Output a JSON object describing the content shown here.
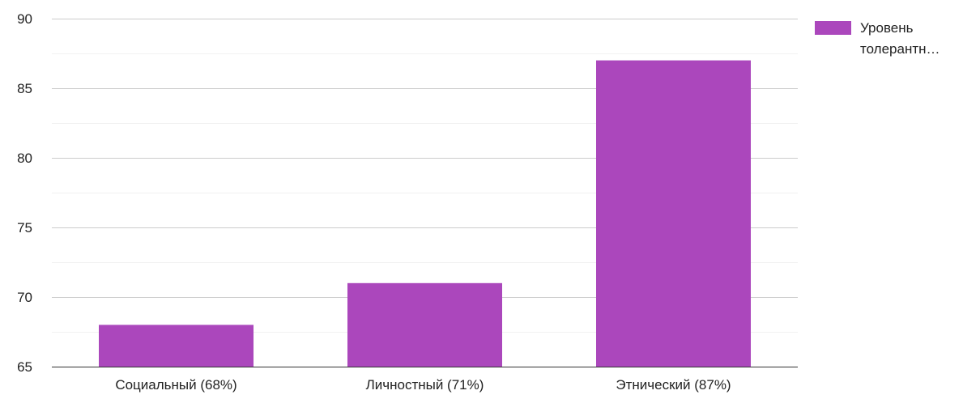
{
  "chart_data": {
    "type": "bar",
    "categories": [
      "Социальный (68%)",
      "Личностный (71%)",
      "Этнический (87%)"
    ],
    "series": [
      {
        "name": "Уровень толерантн…",
        "values": [
          68,
          71,
          87
        ],
        "color": "#ab47bc"
      }
    ],
    "ylim": [
      65,
      90
    ],
    "yticks": [
      65,
      70,
      75,
      80,
      85,
      90
    ],
    "grid": true,
    "legend": {
      "position": "right",
      "lines": [
        "Уровень",
        "толерантн…"
      ]
    }
  }
}
